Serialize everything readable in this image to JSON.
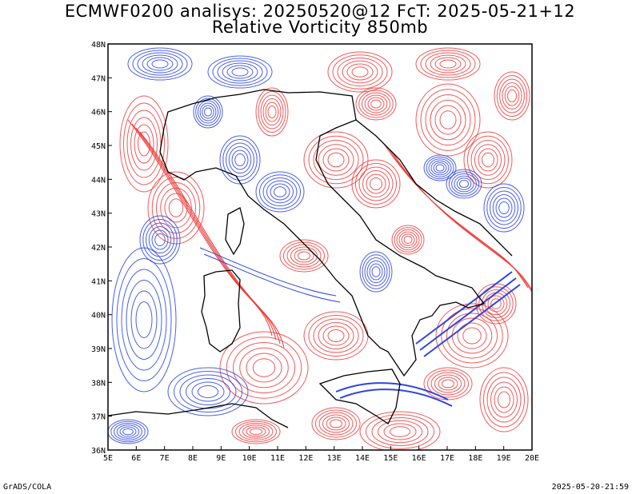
{
  "title": {
    "line1": "ECMWF0200 analisys: 20250520@12 FcT: 2025-05-21+12",
    "line2": "Relative Vorticity 850mb"
  },
  "map": {
    "lon_range": [
      5,
      20
    ],
    "lat_range": [
      36,
      48
    ],
    "lon_labels": [
      "5E",
      "6E",
      "7E",
      "8E",
      "9E",
      "10E",
      "11E",
      "12E",
      "13E",
      "14E",
      "15E",
      "16E",
      "17E",
      "18E",
      "19E",
      "20E"
    ],
    "lat_labels": [
      "36N",
      "37N",
      "38N",
      "39N",
      "40N",
      "41N",
      "42N",
      "43N",
      "44N",
      "45N",
      "46N",
      "47N",
      "48N"
    ],
    "colors": {
      "positive_contours": "#f03c3c",
      "negative_contours": "#2b44e6",
      "coastline": "#000000"
    }
  },
  "footer": {
    "left": "GrADS/COLA",
    "right": "2025-05-20-21:59"
  }
}
